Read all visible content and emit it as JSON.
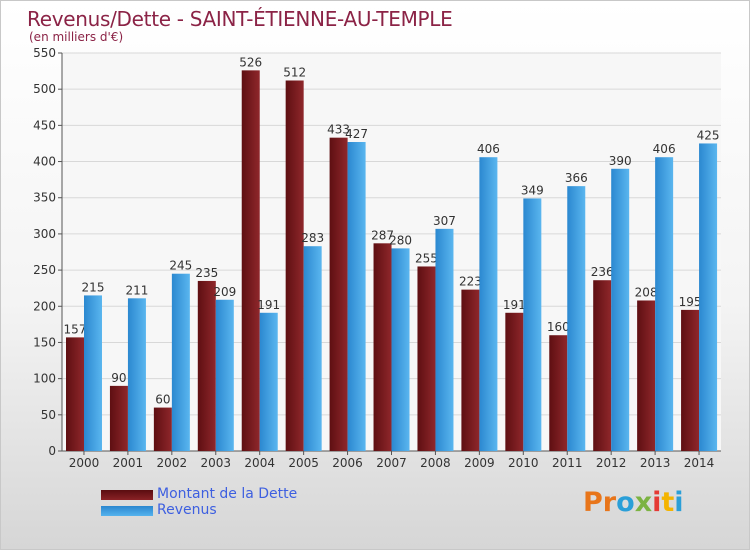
{
  "title": "Revenus/Dette - SAINT-ÉTIENNE-AU-TEMPLE",
  "subtitle": "(en milliers d'€)",
  "logo": {
    "text": "Proxiti",
    "colors": [
      "#e8751a",
      "#e8751a",
      "#2a9fd8",
      "#7cb342",
      "#e53935",
      "#f4b400",
      "#2a9fd8"
    ]
  },
  "chart_data": {
    "type": "bar",
    "categories": [
      "2000",
      "2001",
      "2002",
      "2003",
      "2004",
      "2005",
      "2006",
      "2007",
      "2008",
      "2009",
      "2010",
      "2011",
      "2012",
      "2013",
      "2014"
    ],
    "series": [
      {
        "name": "Montant de la Dette",
        "color": "#7a1618",
        "values": [
          157,
          90,
          60,
          235,
          526,
          512,
          433,
          287,
          255,
          223,
          191,
          160,
          236,
          208,
          195
        ]
      },
      {
        "name": "Revenus",
        "color": "#3a9be0",
        "values": [
          215,
          211,
          245,
          209,
          191,
          283,
          427,
          280,
          307,
          406,
          349,
          366,
          390,
          406,
          425
        ]
      }
    ],
    "yticks": [
      0,
      50,
      100,
      150,
      200,
      250,
      300,
      350,
      400,
      450,
      500,
      550
    ],
    "ylim": [
      0,
      550
    ],
    "grid": true,
    "legend_position": "bottom-left"
  }
}
